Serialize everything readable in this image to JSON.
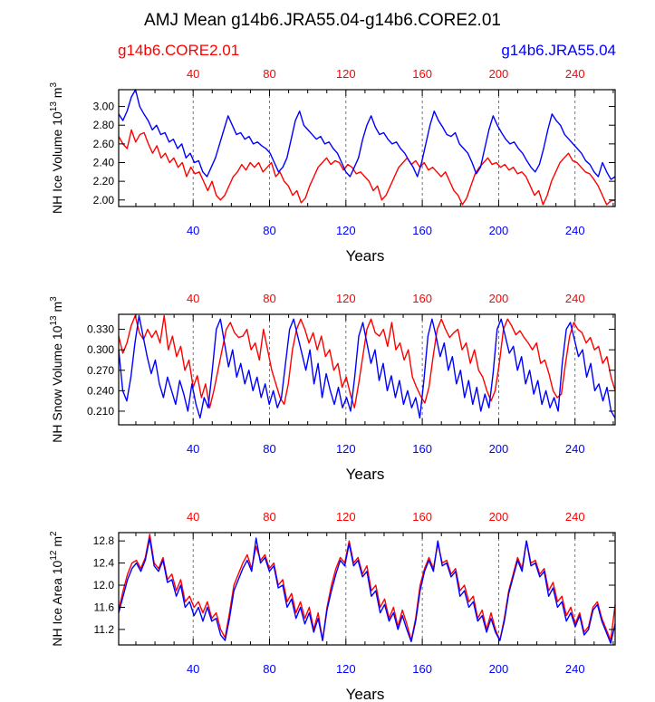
{
  "title": "AMJ Mean g14b6.JRA55.04-g14b6.CORE2.01",
  "legend": {
    "left": {
      "label": "g14b6.CORE2.01",
      "color": "#ff0000"
    },
    "right": {
      "label": "g14b6.JRA55.04",
      "color": "#0000ff"
    }
  },
  "colors": {
    "core": "#ff0000",
    "jra": "#0000ff",
    "axis": "#000000"
  },
  "chart_data": [
    {
      "type": "line",
      "ylabel": "NH Ice Volume 10",
      "ylabel_sup": "13",
      "ylabel_unit": " m",
      "ylabel_unit_sup": "3",
      "xlabel": "Years",
      "xlim": [
        1,
        261
      ],
      "ylim": [
        1.93,
        3.18
      ],
      "xticks": [
        40,
        80,
        120,
        160,
        200,
        240
      ],
      "xtick_labels_top": [
        "40",
        "80",
        "120",
        "160",
        "200",
        "240"
      ],
      "xtick_labels_bottom": [
        "40",
        "80",
        "120",
        "160",
        "200",
        "240"
      ],
      "yticks": [
        2.0,
        2.2,
        2.4,
        2.6,
        2.8,
        3.0
      ],
      "ytick_labels": [
        "2.00",
        "2.20",
        "2.40",
        "2.60",
        "2.80",
        "3.00"
      ],
      "series": [
        {
          "name": "g14b6.CORE2.01",
          "color": "#ff0000",
          "values": [
            2.68,
            2.6,
            2.55,
            2.75,
            2.62,
            2.7,
            2.72,
            2.6,
            2.5,
            2.58,
            2.45,
            2.5,
            2.4,
            2.45,
            2.35,
            2.4,
            2.25,
            2.35,
            2.28,
            2.3,
            2.2,
            2.1,
            2.2,
            2.05,
            2.0,
            2.05,
            2.15,
            2.25,
            2.3,
            2.38,
            2.32,
            2.4,
            2.35,
            2.4,
            2.3,
            2.35,
            2.4,
            2.25,
            2.3,
            2.2,
            2.15,
            2.05,
            2.1,
            1.97,
            2.02,
            2.15,
            2.25,
            2.35,
            2.4,
            2.45,
            2.38,
            2.42,
            2.4,
            2.32,
            2.38,
            2.35,
            2.28,
            2.3,
            2.25,
            2.2,
            2.1,
            2.15,
            2.0,
            2.05,
            2.15,
            2.25,
            2.35,
            2.4,
            2.45,
            2.38,
            2.42,
            2.35,
            2.4,
            2.32,
            2.35,
            2.3,
            2.25,
            2.3,
            2.2,
            2.1,
            2.05,
            1.95,
            2.02,
            2.15,
            2.28,
            2.35,
            2.4,
            2.45,
            2.38,
            2.4,
            2.35,
            2.38,
            2.32,
            2.35,
            2.28,
            2.3,
            2.25,
            2.15,
            2.05,
            2.1,
            1.95,
            2.05,
            2.2,
            2.3,
            2.4,
            2.45,
            2.5,
            2.42,
            2.4,
            2.35,
            2.3,
            2.28,
            2.22,
            2.15,
            2.05,
            1.95,
            1.99,
            2.0
          ]
        },
        {
          "name": "g14b6.JRA55.04",
          "color": "#0000ff",
          "values": [
            2.92,
            2.85,
            2.95,
            3.1,
            3.18,
            3.0,
            2.92,
            2.85,
            2.75,
            2.8,
            2.7,
            2.72,
            2.62,
            2.65,
            2.55,
            2.6,
            2.45,
            2.5,
            2.4,
            2.42,
            2.3,
            2.25,
            2.35,
            2.45,
            2.6,
            2.75,
            2.9,
            2.8,
            2.7,
            2.72,
            2.65,
            2.68,
            2.6,
            2.62,
            2.58,
            2.55,
            2.5,
            2.4,
            2.3,
            2.35,
            2.45,
            2.65,
            2.85,
            2.95,
            2.8,
            2.75,
            2.7,
            2.65,
            2.68,
            2.6,
            2.62,
            2.55,
            2.5,
            2.4,
            2.3,
            2.25,
            2.35,
            2.45,
            2.65,
            2.8,
            2.9,
            2.78,
            2.7,
            2.72,
            2.65,
            2.6,
            2.62,
            2.55,
            2.5,
            2.42,
            2.35,
            2.25,
            2.4,
            2.6,
            2.8,
            2.95,
            2.85,
            2.78,
            2.7,
            2.68,
            2.72,
            2.6,
            2.55,
            2.5,
            2.4,
            2.28,
            2.35,
            2.55,
            2.75,
            2.9,
            2.8,
            2.72,
            2.65,
            2.6,
            2.62,
            2.55,
            2.5,
            2.42,
            2.35,
            2.3,
            2.38,
            2.55,
            2.75,
            2.92,
            2.85,
            2.8,
            2.7,
            2.65,
            2.6,
            2.55,
            2.5,
            2.42,
            2.38,
            2.3,
            2.25,
            2.4,
            2.3,
            2.22,
            2.25
          ]
        }
      ]
    },
    {
      "type": "line",
      "ylabel": "NH Snow Volume 10",
      "ylabel_sup": "13",
      "ylabel_unit": " m",
      "ylabel_unit_sup": "3",
      "xlabel": "Years",
      "xlim": [
        1,
        261
      ],
      "ylim": [
        0.19,
        0.352
      ],
      "xticks": [
        40,
        80,
        120,
        160,
        200,
        240
      ],
      "xtick_labels_top": [
        "40",
        "80",
        "120",
        "160",
        "200",
        "240"
      ],
      "xtick_labels_bottom": [
        "40",
        "80",
        "120",
        "160",
        "200",
        "240"
      ],
      "yticks": [
        0.21,
        0.24,
        0.27,
        0.3,
        0.33
      ],
      "ytick_labels": [
        "0.210",
        "0.240",
        "0.270",
        "0.300",
        "0.330"
      ],
      "series": [
        {
          "name": "g14b6.CORE2.01",
          "color": "#ff0000",
          "values": [
            0.32,
            0.295,
            0.31,
            0.335,
            0.35,
            0.325,
            0.315,
            0.33,
            0.318,
            0.328,
            0.31,
            0.35,
            0.3,
            0.32,
            0.29,
            0.305,
            0.27,
            0.285,
            0.245,
            0.262,
            0.23,
            0.25,
            0.215,
            0.24,
            0.27,
            0.3,
            0.33,
            0.34,
            0.325,
            0.318,
            0.32,
            0.33,
            0.3,
            0.31,
            0.285,
            0.33,
            0.3,
            0.27,
            0.25,
            0.23,
            0.22,
            0.25,
            0.3,
            0.33,
            0.345,
            0.33,
            0.31,
            0.325,
            0.3,
            0.32,
            0.29,
            0.3,
            0.27,
            0.28,
            0.245,
            0.26,
            0.235,
            0.215,
            0.25,
            0.29,
            0.33,
            0.345,
            0.325,
            0.32,
            0.33,
            0.305,
            0.34,
            0.3,
            0.31,
            0.285,
            0.3,
            0.26,
            0.245,
            0.232,
            0.222,
            0.245,
            0.29,
            0.33,
            0.345,
            0.33,
            0.318,
            0.325,
            0.33,
            0.3,
            0.31,
            0.28,
            0.3,
            0.27,
            0.26,
            0.24,
            0.225,
            0.24,
            0.28,
            0.33,
            0.345,
            0.335,
            0.322,
            0.328,
            0.318,
            0.31,
            0.3,
            0.31,
            0.28,
            0.285,
            0.265,
            0.24,
            0.23,
            0.235,
            0.28,
            0.32,
            0.34,
            0.33,
            0.325,
            0.31,
            0.318,
            0.3,
            0.305,
            0.28,
            0.29,
            0.26,
            0.24
          ]
        },
        {
          "name": "g14b6.JRA55.04",
          "color": "#0000ff",
          "values": [
            0.3,
            0.24,
            0.225,
            0.26,
            0.31,
            0.35,
            0.32,
            0.29,
            0.265,
            0.285,
            0.25,
            0.23,
            0.26,
            0.24,
            0.22,
            0.255,
            0.235,
            0.21,
            0.25,
            0.22,
            0.2,
            0.23,
            0.215,
            0.27,
            0.33,
            0.345,
            0.31,
            0.275,
            0.3,
            0.26,
            0.28,
            0.25,
            0.27,
            0.24,
            0.26,
            0.23,
            0.25,
            0.22,
            0.24,
            0.215,
            0.23,
            0.28,
            0.33,
            0.345,
            0.32,
            0.295,
            0.27,
            0.3,
            0.25,
            0.28,
            0.23,
            0.265,
            0.24,
            0.22,
            0.245,
            0.215,
            0.23,
            0.21,
            0.26,
            0.32,
            0.34,
            0.31,
            0.28,
            0.3,
            0.255,
            0.28,
            0.24,
            0.262,
            0.23,
            0.255,
            0.22,
            0.24,
            0.215,
            0.23,
            0.2,
            0.255,
            0.32,
            0.345,
            0.32,
            0.29,
            0.31,
            0.27,
            0.29,
            0.25,
            0.27,
            0.23,
            0.255,
            0.22,
            0.245,
            0.21,
            0.235,
            0.215,
            0.265,
            0.33,
            0.345,
            0.32,
            0.295,
            0.305,
            0.27,
            0.29,
            0.25,
            0.27,
            0.235,
            0.255,
            0.22,
            0.24,
            0.215,
            0.23,
            0.21,
            0.28,
            0.33,
            0.34,
            0.315,
            0.29,
            0.3,
            0.26,
            0.28,
            0.24,
            0.25,
            0.225,
            0.245,
            0.21,
            0.2
          ]
        }
      ]
    },
    {
      "type": "line",
      "ylabel": "NH Ice Area 10",
      "ylabel_sup": "12",
      "ylabel_unit": " m",
      "ylabel_unit_sup": "2",
      "xlabel": "Years",
      "xlim": [
        1,
        261
      ],
      "ylim": [
        10.92,
        12.95
      ],
      "xticks": [
        40,
        80,
        120,
        160,
        200,
        240
      ],
      "xtick_labels_top": [
        "40",
        "80",
        "120",
        "160",
        "200",
        "240"
      ],
      "xtick_labels_bottom": [
        "40",
        "80",
        "120",
        "160",
        "200",
        "240"
      ],
      "yticks": [
        11.2,
        11.6,
        12.0,
        12.4,
        12.8
      ],
      "ytick_labels": [
        "11.2",
        "11.6",
        "12.0",
        "12.4",
        "12.8"
      ],
      "series": [
        {
          "name": "g14b6.CORE2.01",
          "color": "#ff0000",
          "values": [
            11.55,
            11.9,
            12.2,
            12.4,
            12.45,
            12.3,
            12.5,
            12.92,
            12.4,
            12.3,
            12.5,
            12.1,
            12.2,
            11.9,
            12.1,
            11.7,
            11.8,
            11.6,
            11.7,
            11.5,
            11.7,
            11.4,
            11.5,
            11.2,
            11.05,
            11.5,
            12.0,
            12.2,
            12.4,
            12.55,
            12.3,
            12.7,
            12.45,
            12.55,
            12.3,
            12.4,
            12.0,
            12.1,
            11.7,
            11.85,
            11.5,
            11.7,
            11.4,
            11.6,
            11.2,
            11.5,
            11.0,
            11.6,
            12.0,
            12.3,
            12.5,
            12.4,
            12.8,
            12.4,
            12.5,
            12.2,
            12.35,
            11.9,
            12.0,
            11.6,
            11.75,
            11.4,
            11.6,
            11.25,
            11.55,
            11.3,
            11.0,
            11.4,
            12.0,
            12.3,
            12.5,
            12.3,
            12.75,
            12.4,
            12.45,
            12.2,
            12.3,
            11.9,
            12.0,
            11.7,
            11.8,
            11.4,
            11.55,
            11.2,
            11.5,
            11.2,
            11.0,
            11.4,
            11.9,
            12.2,
            12.5,
            12.3,
            12.8,
            12.4,
            12.45,
            12.2,
            12.3,
            11.9,
            12.05,
            11.7,
            11.8,
            11.45,
            11.6,
            11.3,
            11.5,
            11.15,
            11.25,
            11.6,
            11.7,
            11.4,
            11.2,
            11.0,
            11.65
          ]
        },
        {
          "name": "g14b6.JRA55.04",
          "color": "#0000ff",
          "values": [
            11.5,
            11.8,
            12.1,
            12.3,
            12.4,
            12.25,
            12.45,
            12.85,
            12.35,
            12.25,
            12.45,
            12.05,
            12.1,
            11.8,
            12.0,
            11.6,
            11.7,
            11.45,
            11.6,
            11.35,
            11.6,
            11.35,
            11.4,
            11.1,
            11.0,
            11.4,
            11.9,
            12.1,
            12.3,
            12.45,
            12.25,
            12.85,
            12.4,
            12.5,
            12.25,
            12.35,
            11.95,
            12.0,
            11.6,
            11.75,
            11.4,
            11.6,
            11.3,
            11.5,
            11.15,
            11.4,
            11.0,
            11.55,
            11.9,
            12.2,
            12.45,
            12.35,
            12.75,
            12.35,
            12.45,
            12.15,
            12.25,
            11.8,
            11.9,
            11.5,
            11.65,
            11.35,
            11.5,
            11.2,
            11.45,
            11.2,
            10.98,
            11.35,
            11.9,
            12.25,
            12.45,
            12.25,
            12.8,
            12.35,
            12.4,
            12.15,
            12.25,
            11.8,
            11.9,
            11.6,
            11.7,
            11.35,
            11.45,
            11.15,
            11.4,
            11.15,
            11.0,
            11.35,
            11.85,
            12.15,
            12.45,
            12.25,
            12.8,
            12.35,
            12.4,
            12.15,
            12.25,
            11.8,
            11.95,
            11.6,
            11.7,
            11.35,
            11.5,
            11.25,
            11.45,
            11.1,
            11.2,
            11.55,
            11.65,
            11.35,
            11.15,
            10.95,
            11.3
          ]
        }
      ]
    }
  ]
}
